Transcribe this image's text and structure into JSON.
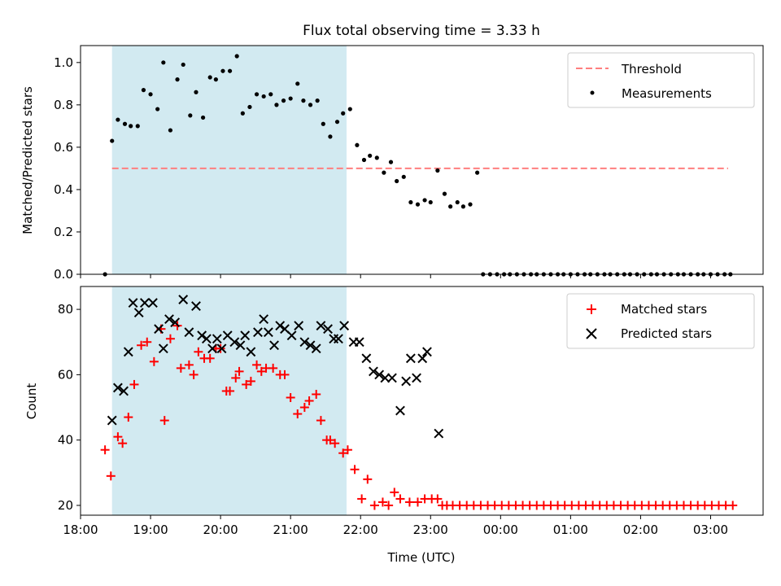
{
  "figure": {
    "title": "Flux total observing time = 3.33 h",
    "xlabel": "Time (UTC)"
  },
  "chart_data": [
    {
      "type": "scatter",
      "ylabel": "Matched/Predicted stars",
      "ylim": [
        0,
        1.08
      ],
      "yticks": [
        0.0,
        0.2,
        0.4,
        0.6,
        0.8,
        1.0
      ],
      "ytick_labels": [
        "0.0",
        "0.2",
        "0.4",
        "0.6",
        "0.8",
        "1.0"
      ],
      "xlim": [
        "18:00",
        "03:45"
      ],
      "shaded_interval": {
        "from": "18:27",
        "to": "21:48",
        "color": "#add8e6"
      },
      "legend_position": "top-right",
      "series": [
        {
          "name": "Threshold",
          "kind": "dashed-line",
          "color": "#ff7f7f",
          "x": [
            "18:27",
            "03:15"
          ],
          "values": [
            0.5,
            0.5
          ]
        },
        {
          "name": "Measurements",
          "kind": "dot",
          "color": "#000000",
          "x": [
            "18:21",
            "18:27",
            "18:32",
            "18:38",
            "18:43",
            "18:49",
            "18:54",
            "19:00",
            "19:06",
            "19:11",
            "19:17",
            "19:23",
            "19:28",
            "19:34",
            "19:39",
            "19:45",
            "19:51",
            "19:56",
            "20:02",
            "20:08",
            "20:14",
            "20:19",
            "20:25",
            "20:31",
            "20:37",
            "20:43",
            "20:48",
            "20:54",
            "21:00",
            "21:06",
            "21:11",
            "21:17",
            "21:23",
            "21:28",
            "21:34",
            "21:40",
            "21:45",
            "21:51",
            "21:57",
            "22:03",
            "22:08",
            "22:14",
            "22:20",
            "22:26",
            "22:31",
            "22:37",
            "22:43",
            "22:49",
            "22:55",
            "23:00",
            "23:06",
            "23:12",
            "23:17",
            "23:23",
            "23:28",
            "23:34",
            "23:40",
            "23:45",
            "23:51",
            "23:57",
            "00:03",
            "00:08",
            "00:14",
            "00:20",
            "00:26",
            "00:31",
            "00:37",
            "00:43",
            "00:49",
            "00:54",
            "01:00",
            "01:06",
            "01:12",
            "01:17",
            "01:23",
            "01:29",
            "01:34",
            "01:40",
            "01:46",
            "01:51",
            "01:57",
            "02:03",
            "02:09",
            "02:14",
            "02:20",
            "02:26",
            "02:32",
            "02:37",
            "02:43",
            "02:49",
            "02:54",
            "03:00",
            "03:06",
            "03:12",
            "03:17"
          ],
          "values": [
            0.0,
            0.63,
            0.73,
            0.71,
            0.7,
            0.7,
            0.87,
            0.85,
            0.78,
            1.0,
            0.68,
            0.92,
            0.99,
            0.75,
            0.86,
            0.74,
            0.93,
            0.92,
            0.96,
            0.96,
            1.03,
            0.76,
            0.79,
            0.85,
            0.84,
            0.85,
            0.8,
            0.82,
            0.83,
            0.9,
            0.82,
            0.8,
            0.82,
            0.71,
            0.65,
            0.72,
            0.76,
            0.78,
            0.61,
            0.54,
            0.56,
            0.55,
            0.48,
            0.53,
            0.44,
            0.46,
            0.34,
            0.33,
            0.35,
            0.34,
            0.49,
            0.38,
            0.32,
            0.34,
            0.32,
            0.33,
            0.48,
            0.0,
            0.0,
            0.0,
            0.0,
            0.0,
            0.0,
            0.0,
            0.0,
            0.0,
            0.0,
            0.0,
            0.0,
            0.0,
            0.0,
            0.0,
            0.0,
            0.0,
            0.0,
            0.0,
            0.0,
            0.0,
            0.0,
            0.0,
            0.0,
            0.0,
            0.0,
            0.0,
            0.0,
            0.0,
            0.0,
            0.0,
            0.0,
            0.0,
            0.0,
            0.0,
            0.0,
            0.0,
            0.0
          ]
        }
      ]
    },
    {
      "type": "scatter",
      "ylabel": "Count",
      "ylim": [
        17,
        87
      ],
      "yticks": [
        20,
        40,
        60,
        80
      ],
      "ytick_labels": [
        "20",
        "40",
        "60",
        "80"
      ],
      "xlim": [
        "18:00",
        "03:45"
      ],
      "xticks": [
        "18:00",
        "19:00",
        "20:00",
        "21:00",
        "22:00",
        "23:00",
        "00:00",
        "01:00",
        "02:00",
        "03:00"
      ],
      "xtick_labels": [
        "18:00",
        "19:00",
        "20:00",
        "21:00",
        "22:00",
        "23:00",
        "00:00",
        "01:00",
        "02:00",
        "03:00"
      ],
      "shaded_interval": {
        "from": "18:27",
        "to": "21:48",
        "color": "#add8e6"
      },
      "legend_position": "top-right",
      "series": [
        {
          "name": "Matched stars",
          "kind": "plus",
          "color": "#ff0000",
          "x": [
            "18:21",
            "18:26",
            "18:32",
            "18:36",
            "18:41",
            "18:46",
            "18:52",
            "18:57",
            "19:03",
            "19:09",
            "19:12",
            "19:17",
            "19:23",
            "19:26",
            "19:33",
            "19:37",
            "19:41",
            "19:46",
            "19:51",
            "19:56",
            "20:00",
            "20:05",
            "20:08",
            "20:13",
            "20:16",
            "20:22",
            "20:26",
            "20:31",
            "20:35",
            "20:39",
            "20:45",
            "20:51",
            "20:55",
            "21:00",
            "21:06",
            "21:12",
            "21:16",
            "21:22",
            "21:26",
            "21:31",
            "21:34",
            "21:38",
            "21:45",
            "21:49",
            "21:55",
            "22:01",
            "22:06",
            "22:12",
            "22:19",
            "22:24",
            "22:29",
            "22:34",
            "22:42",
            "22:49",
            "22:55",
            "23:01",
            "23:06",
            "23:10",
            "23:14",
            "23:19",
            "23:25",
            "23:31",
            "23:37",
            "23:43",
            "23:49",
            "23:55",
            "00:01",
            "00:07",
            "00:13",
            "00:19",
            "00:25",
            "00:31",
            "00:37",
            "00:43",
            "00:49",
            "00:55",
            "01:01",
            "01:07",
            "01:13",
            "01:19",
            "01:25",
            "01:31",
            "01:37",
            "01:43",
            "01:49",
            "01:55",
            "02:01",
            "02:07",
            "02:13",
            "02:19",
            "02:25",
            "02:31",
            "02:37",
            "02:43",
            "02:49",
            "02:55",
            "03:01",
            "03:07",
            "03:13",
            "03:19"
          ],
          "values": [
            37,
            29,
            41,
            39,
            47,
            57,
            69,
            70,
            64,
            74,
            46,
            71,
            75,
            62,
            63,
            60,
            67,
            65,
            65,
            68,
            68,
            55,
            55,
            59,
            61,
            57,
            58,
            63,
            61,
            62,
            62,
            60,
            60,
            53,
            48,
            50,
            52,
            54,
            46,
            40,
            40,
            39,
            36,
            37,
            31,
            22,
            28,
            20,
            21,
            20,
            24,
            22,
            21,
            21,
            22,
            22,
            22,
            20,
            20,
            20,
            20,
            20,
            20,
            20,
            20,
            20,
            20,
            20,
            20,
            20,
            20,
            20,
            20,
            20,
            20,
            20,
            20,
            20,
            20,
            20,
            20,
            20,
            20,
            20,
            20,
            20,
            20,
            20,
            20,
            20,
            20,
            20,
            20,
            20,
            20,
            20,
            20,
            20,
            20,
            20
          ]
        },
        {
          "name": "Predicted stars",
          "kind": "x",
          "color": "#000000",
          "x": [
            "18:27",
            "18:32",
            "18:37",
            "18:41",
            "18:45",
            "18:50",
            "18:55",
            "19:02",
            "19:07",
            "19:11",
            "19:16",
            "19:21",
            "19:28",
            "19:33",
            "19:39",
            "19:44",
            "19:48",
            "19:53",
            "19:57",
            "20:01",
            "20:06",
            "20:12",
            "20:17",
            "20:21",
            "20:26",
            "20:32",
            "20:37",
            "20:41",
            "20:46",
            "20:51",
            "20:55",
            "21:01",
            "21:07",
            "21:12",
            "21:17",
            "21:22",
            "21:26",
            "21:32",
            "21:37",
            "21:41",
            "21:46",
            "21:54",
            "21:59",
            "22:05",
            "22:11",
            "22:16",
            "22:21",
            "22:27",
            "22:34",
            "22:39",
            "22:43",
            "22:48",
            "22:53",
            "22:57"
          ],
          "values": [
            46,
            56,
            55,
            67,
            82,
            79,
            82,
            82,
            74,
            68,
            77,
            76,
            83,
            73,
            81,
            72,
            71,
            68,
            71,
            68,
            72,
            70,
            69,
            72,
            67,
            73,
            77,
            73,
            69,
            75,
            74,
            72,
            75,
            70,
            69,
            68,
            75,
            74,
            71,
            71,
            75,
            70,
            70,
            65,
            61,
            60,
            59,
            59,
            49,
            58,
            65,
            59,
            65,
            67
          ]
        },
        {
          "name": "",
          "kind": "x",
          "color": "#000000",
          "x": [
            "23:07"
          ],
          "values": [
            42
          ]
        }
      ]
    }
  ]
}
